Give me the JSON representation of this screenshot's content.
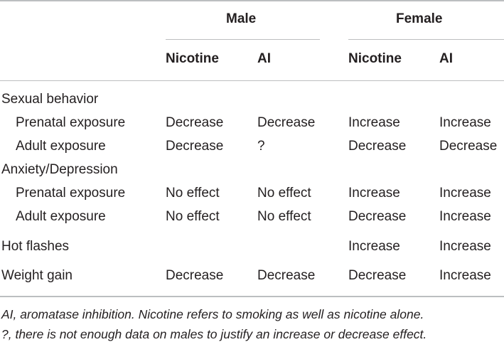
{
  "table": {
    "group_headers": [
      "Male",
      "Female"
    ],
    "column_headers": [
      "Nicotine",
      "AI",
      "Nicotine",
      "AI"
    ],
    "rows": [
      {
        "label": "Sexual behavior",
        "indent": false,
        "values": [
          "",
          "",
          "",
          ""
        ]
      },
      {
        "label": "Prenatal exposure",
        "indent": true,
        "values": [
          "Decrease",
          "Decrease",
          "Increase",
          "Increase"
        ]
      },
      {
        "label": "Adult exposure",
        "indent": true,
        "values": [
          "Decrease",
          "?",
          "Decrease",
          "Decrease"
        ]
      },
      {
        "label": "Anxiety/Depression",
        "indent": false,
        "values": [
          "",
          "",
          "",
          ""
        ]
      },
      {
        "label": "Prenatal exposure",
        "indent": true,
        "values": [
          "No effect",
          "No effect",
          "Increase",
          "Increase"
        ]
      },
      {
        "label": "Adult exposure",
        "indent": true,
        "values": [
          "No effect",
          "No effect",
          "Decrease",
          "Increase"
        ]
      },
      {
        "label": "Hot flashes",
        "indent": false,
        "values": [
          "",
          "",
          "Increase",
          "Increase"
        ]
      },
      {
        "label": "Weight gain",
        "indent": false,
        "values": [
          "Decrease",
          "Decrease",
          "Decrease",
          "Increase"
        ]
      }
    ]
  },
  "footnotes": [
    "AI, aromatase inhibition. Nicotine refers to smoking as well as nicotine alone.",
    "?, there is not enough data on males to justify an increase or decrease effect."
  ]
}
